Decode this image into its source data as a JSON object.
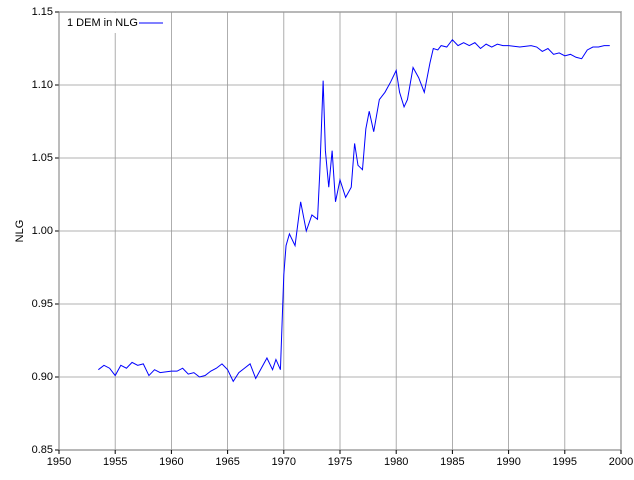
{
  "chart_data": {
    "type": "line",
    "ylabel": "NLG",
    "series": [
      {
        "name": "1 DEM in NLG",
        "color": "#0000ff",
        "x": [
          1953.5,
          1954,
          1954.5,
          1955,
          1955.5,
          1956,
          1956.5,
          1957,
          1957.5,
          1958,
          1958.5,
          1959,
          1960,
          1960.5,
          1961,
          1961.5,
          1962,
          1962.5,
          1963,
          1963.5,
          1964,
          1964.5,
          1965,
          1965.5,
          1966,
          1966.5,
          1967,
          1967.5,
          1968,
          1968.5,
          1969,
          1969.3,
          1969.7,
          1970,
          1970.2,
          1970.5,
          1971,
          1971.5,
          1972,
          1972.5,
          1973,
          1973.2,
          1973.5,
          1973.7,
          1974,
          1974.3,
          1974.6,
          1975,
          1975.5,
          1976,
          1976.3,
          1976.6,
          1977,
          1977.3,
          1977.6,
          1978,
          1978.5,
          1979,
          1979.5,
          1980,
          1980.3,
          1980.7,
          1981,
          1981.5,
          1982,
          1982.5,
          1983,
          1983.3,
          1983.7,
          1984,
          1984.5,
          1985,
          1985.5,
          1986,
          1986.5,
          1987,
          1987.5,
          1988,
          1988.5,
          1989,
          1989.5,
          1990,
          1991,
          1992,
          1992.5,
          1993,
          1993.5,
          1994,
          1994.5,
          1995,
          1995.5,
          1996,
          1996.5,
          1997,
          1997.5,
          1998,
          1998.5,
          1999
        ],
        "values": [
          0.905,
          0.908,
          0.906,
          0.901,
          0.908,
          0.906,
          0.91,
          0.908,
          0.909,
          0.901,
          0.905,
          0.903,
          0.904,
          0.904,
          0.906,
          0.902,
          0.903,
          0.9,
          0.901,
          0.904,
          0.906,
          0.909,
          0.905,
          0.897,
          0.903,
          0.906,
          0.909,
          0.899,
          0.906,
          0.913,
          0.905,
          0.912,
          0.905,
          0.97,
          0.99,
          0.998,
          0.99,
          1.02,
          1.0,
          1.011,
          1.008,
          1.04,
          1.103,
          1.055,
          1.03,
          1.055,
          1.02,
          1.035,
          1.023,
          1.03,
          1.06,
          1.045,
          1.042,
          1.07,
          1.082,
          1.068,
          1.09,
          1.095,
          1.102,
          1.11,
          1.095,
          1.085,
          1.09,
          1.112,
          1.105,
          1.095,
          1.115,
          1.125,
          1.124,
          1.127,
          1.126,
          1.131,
          1.127,
          1.129,
          1.127,
          1.129,
          1.125,
          1.128,
          1.126,
          1.128,
          1.127,
          1.127,
          1.126,
          1.127,
          1.126,
          1.123,
          1.125,
          1.121,
          1.122,
          1.12,
          1.121,
          1.119,
          1.118,
          1.124,
          1.126,
          1.126,
          1.127,
          1.127
        ]
      }
    ],
    "xlim": [
      1950,
      2000
    ],
    "xticks": [
      1950,
      1955,
      1960,
      1965,
      1970,
      1975,
      1980,
      1985,
      1990,
      1995,
      2000
    ],
    "ylim": [
      0.85,
      1.15
    ],
    "yticks": [
      0.85,
      {
        "value": 0.9,
        "label": "0.90"
      },
      0.95,
      {
        "value": 1.0,
        "label": "1.00"
      },
      1.05,
      {
        "value": 1.1,
        "label": "1.10"
      },
      1.15
    ],
    "grid": true,
    "legend": "upper left"
  }
}
